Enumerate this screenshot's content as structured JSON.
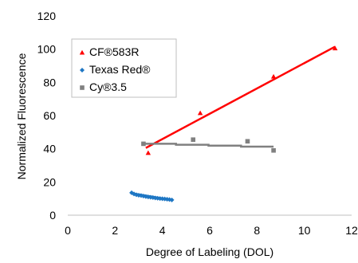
{
  "chart_data": {
    "type": "scatter",
    "title": "",
    "xlabel": "Degree of Labeling (DOL)",
    "ylabel": "Normalized Fluorescence",
    "xlim": [
      0,
      12
    ],
    "ylim": [
      0,
      120
    ],
    "xticks": [
      0,
      2,
      4,
      6,
      8,
      10,
      12
    ],
    "yticks": [
      0,
      20,
      40,
      60,
      80,
      100,
      120
    ],
    "grid": false,
    "legend_position": "top-left",
    "series": [
      {
        "name": "CF®583R",
        "color": "#ff0000",
        "marker": "triangle",
        "x": [
          3.4,
          5.6,
          8.7,
          11.3
        ],
        "y": [
          37.5,
          61.5,
          83.5,
          100.5
        ],
        "trendline": {
          "type": "linear",
          "x": [
            3.3,
            11.3
          ],
          "y": [
            40.5,
            101.5
          ]
        }
      },
      {
        "name": "Texas Red®",
        "color": "#1f77c4",
        "marker": "diamond",
        "x": [
          2.7,
          2.8,
          2.9,
          3.0,
          3.1,
          3.2,
          3.3,
          3.4,
          3.5,
          3.6,
          3.7,
          3.8,
          3.9,
          4.0,
          4.1,
          4.2,
          4.3,
          4.4
        ],
        "y": [
          13.5,
          12.8,
          12.3,
          12.0,
          11.8,
          11.5,
          11.2,
          11.0,
          10.8,
          10.6,
          10.4,
          10.2,
          10.0,
          9.9,
          9.8,
          9.6,
          9.4,
          9.2
        ],
        "trendline": {
          "type": "linear",
          "x": [
            2.7,
            4.4
          ],
          "y": [
            13.2,
            9.2
          ]
        }
      },
      {
        "name": "Cy®3.5",
        "color": "#808080",
        "marker": "square",
        "x": [
          3.2,
          5.3,
          7.6,
          8.7
        ],
        "y": [
          43.0,
          45.5,
          44.5,
          39.0
        ],
        "trendline": {
          "type": "linear",
          "x": [
            3.2,
            8.7
          ],
          "y": [
            43.0,
            41.3
          ]
        }
      }
    ]
  }
}
